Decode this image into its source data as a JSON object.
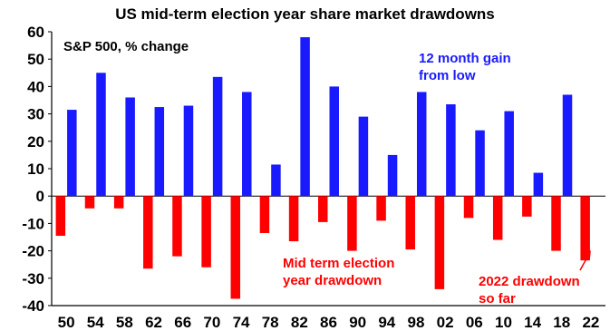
{
  "chart_data": {
    "type": "bar",
    "title": "US mid-term election year share market drawdowns",
    "subtitle": "S&P 500, % change",
    "categories": [
      "50",
      "54",
      "58",
      "62",
      "66",
      "70",
      "74",
      "78",
      "82",
      "86",
      "90",
      "94",
      "98",
      "02",
      "06",
      "10",
      "14",
      "18",
      "22"
    ],
    "series": [
      {
        "name": "12 month gain from low",
        "color": "#1a1aff",
        "values": [
          31.5,
          45,
          36,
          32.5,
          33,
          43.5,
          38,
          11.5,
          58,
          40,
          29,
          15,
          38,
          33.5,
          24,
          31,
          8.5,
          37,
          null
        ]
      },
      {
        "name": "Mid term election year drawdown",
        "color": "#ff0000",
        "values": [
          -14.5,
          -4.5,
          -4.5,
          -26.5,
          -22,
          -26,
          -37.5,
          -13.5,
          -16.5,
          -9.5,
          -20,
          -9,
          -19.5,
          -34,
          -8,
          -16,
          -7.5,
          -20,
          -23.5
        ]
      }
    ],
    "ylim": [
      -40,
      60
    ],
    "yticks": [
      -40,
      -30,
      -20,
      -10,
      0,
      10,
      20,
      30,
      40,
      50,
      60
    ],
    "grid": false,
    "annotations": [
      {
        "lines": [
          "12 month gain",
          "from low"
        ],
        "color": "#1a1aff"
      },
      {
        "lines": [
          "Mid term election",
          "year drawdown"
        ],
        "color": "#ff0000"
      },
      {
        "lines": [
          "2022 drawdown",
          "so far"
        ],
        "color": "#ff0000"
      }
    ]
  }
}
